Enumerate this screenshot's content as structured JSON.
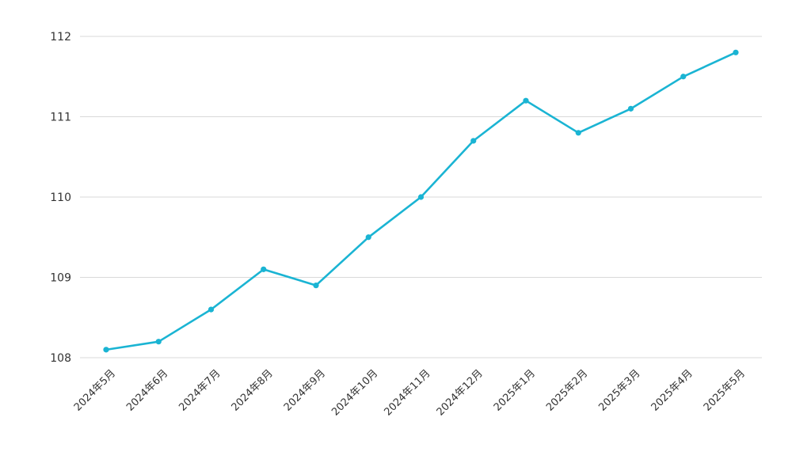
{
  "chart_data": {
    "type": "line",
    "title": "",
    "xlabel": "",
    "ylabel": "",
    "categories": [
      "2024年5月",
      "2024年6月",
      "2024年7月",
      "2024年8月",
      "2024年9月",
      "2024年10月",
      "2024年11月",
      "2024年12月",
      "2025年1月",
      "2025年2月",
      "2025年3月",
      "2025年4月",
      "2025年5月"
    ],
    "series": [
      {
        "values": [
          108.1,
          108.2,
          108.6,
          109.1,
          108.9,
          109.5,
          110.0,
          110.7,
          111.2,
          110.8,
          111.1,
          111.5,
          111.8
        ]
      }
    ],
    "ylim": [
      108,
      112
    ],
    "y_ticks": [
      "108",
      "109",
      "110",
      "111",
      "112"
    ],
    "grid": true,
    "legend": "none",
    "colors": {
      "line": "#1ab4d3",
      "grid": "#d9d9d9",
      "text": "#333333"
    }
  }
}
